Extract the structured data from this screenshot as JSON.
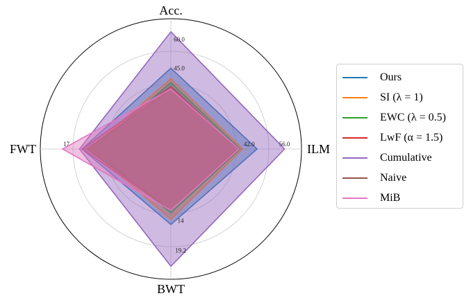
{
  "chart_data": {
    "type": "radar",
    "axes": [
      "Acc.",
      "ILM",
      "BWT",
      "FWT"
    ],
    "tick_labels": {
      "Acc.": [
        "45.0",
        "60.0"
      ],
      "ILM": [
        "42.0",
        "56.0"
      ],
      "BWT": [
        "14",
        "19.2"
      ],
      "FWT": [
        "17"
      ]
    },
    "series": [
      {
        "name": "Ours",
        "color": "#1f77b4",
        "values": [
          0.62,
          0.66,
          0.58,
          0.68
        ]
      },
      {
        "name": "SI (λ = 1)",
        "color": "#ff7f0e",
        "values": [
          0.54,
          0.55,
          0.54,
          0.62
        ]
      },
      {
        "name": "EWC (λ = 0.5)",
        "color": "#2ca02c",
        "values": [
          0.51,
          0.53,
          0.49,
          0.6
        ]
      },
      {
        "name": "LwF (α = 1.5)",
        "color": "#d62728",
        "values": [
          0.48,
          0.51,
          0.47,
          0.68
        ]
      },
      {
        "name": "Cumulative",
        "color": "#9467bd",
        "values": [
          0.9,
          0.87,
          0.9,
          0.7
        ]
      },
      {
        "name": "Naive",
        "color": "#8c564b",
        "values": [
          0.46,
          0.52,
          0.47,
          0.64
        ]
      },
      {
        "name": "MiB",
        "color": "#e377c2",
        "values": [
          0.46,
          0.52,
          0.47,
          0.83
        ]
      }
    ],
    "grid": true,
    "legend_position": "right"
  }
}
